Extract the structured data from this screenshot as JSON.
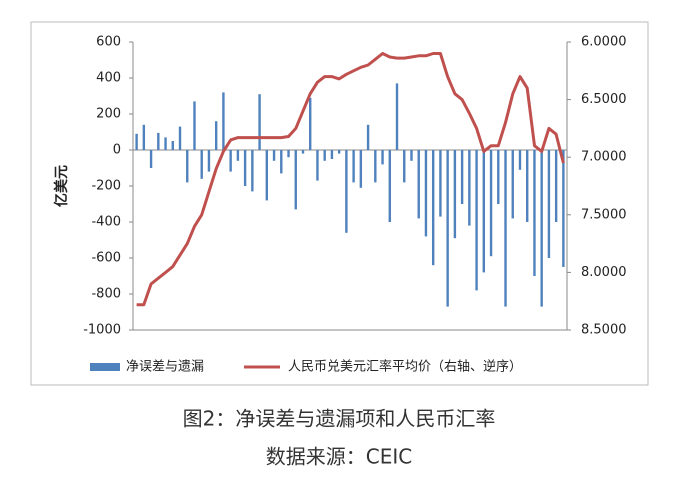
{
  "chart_data": {
    "type": "combo",
    "y_label": "亿美元",
    "caption": "图2：净误差与遗漏项和人民币汇率",
    "source": "数据来源：CEIC",
    "categories": [
      null,
      null,
      null,
      null,
      null,
      null,
      null,
      null,
      null,
      null,
      null,
      null,
      null,
      null,
      null,
      null,
      null,
      null,
      null,
      null,
      null,
      null,
      null,
      null,
      null,
      null,
      null,
      null,
      null,
      null,
      null,
      null,
      null,
      null,
      null,
      null,
      null,
      null,
      null,
      null,
      null,
      null,
      null,
      null,
      null,
      null,
      null,
      null,
      null,
      null,
      null,
      null,
      null,
      null,
      null,
      null,
      null,
      null,
      null,
      null
    ],
    "series": [
      {
        "name": "净误差与遗漏",
        "type": "bar",
        "color": "#4f81bd",
        "values": [
          90,
          140,
          -100,
          95,
          70,
          50,
          130,
          -180,
          270,
          -160,
          -120,
          160,
          320,
          -120,
          -60,
          -200,
          -230,
          310,
          -280,
          -60,
          -130,
          -40,
          -330,
          -20,
          290,
          -170,
          -60,
          -50,
          -20,
          -460,
          -180,
          -210,
          140,
          -180,
          -80,
          -400,
          370,
          -180,
          -60,
          -380,
          -480,
          -640,
          -370,
          -870,
          -490,
          -300,
          -420,
          -780,
          -680,
          -590,
          -300,
          -870,
          -380,
          -110,
          -400,
          -700,
          -870,
          -600,
          -400,
          -650
        ]
      },
      {
        "name": "人民币兑美元汇率平均价（右轴、逆序）",
        "type": "line",
        "color": "#c0504d",
        "axis": "y2",
        "values": [
          8.28,
          8.28,
          8.1,
          8.05,
          8.0,
          7.95,
          7.85,
          7.75,
          7.6,
          7.5,
          7.3,
          7.1,
          6.95,
          6.85,
          6.83,
          6.83,
          6.83,
          6.83,
          6.83,
          6.83,
          6.83,
          6.82,
          6.75,
          6.6,
          6.45,
          6.35,
          6.3,
          6.3,
          6.32,
          6.28,
          6.25,
          6.22,
          6.2,
          6.15,
          6.1,
          6.13,
          6.14,
          6.14,
          6.13,
          6.12,
          6.12,
          6.1,
          6.1,
          6.3,
          6.45,
          6.5,
          6.62,
          6.75,
          6.95,
          6.9,
          6.9,
          6.7,
          6.45,
          6.3,
          6.4,
          6.9,
          6.95,
          6.75,
          6.8,
          7.05
        ]
      }
    ],
    "ylim": [
      -1000,
      600
    ],
    "yticks": [
      -1000,
      -800,
      -600,
      -400,
      -200,
      0,
      200,
      400,
      600
    ],
    "y2lim": [
      8.5,
      6
    ],
    "y2ticks": [
      {
        "value": 8.5,
        "label": "8.5000"
      },
      {
        "value": 8,
        "label": "8.0000"
      },
      {
        "value": 7.5,
        "label": "7.5000"
      },
      {
        "value": 7,
        "label": "7.0000"
      },
      {
        "value": 6.5,
        "label": "6.5000"
      },
      {
        "value": 6,
        "label": "6.0000"
      }
    ]
  }
}
